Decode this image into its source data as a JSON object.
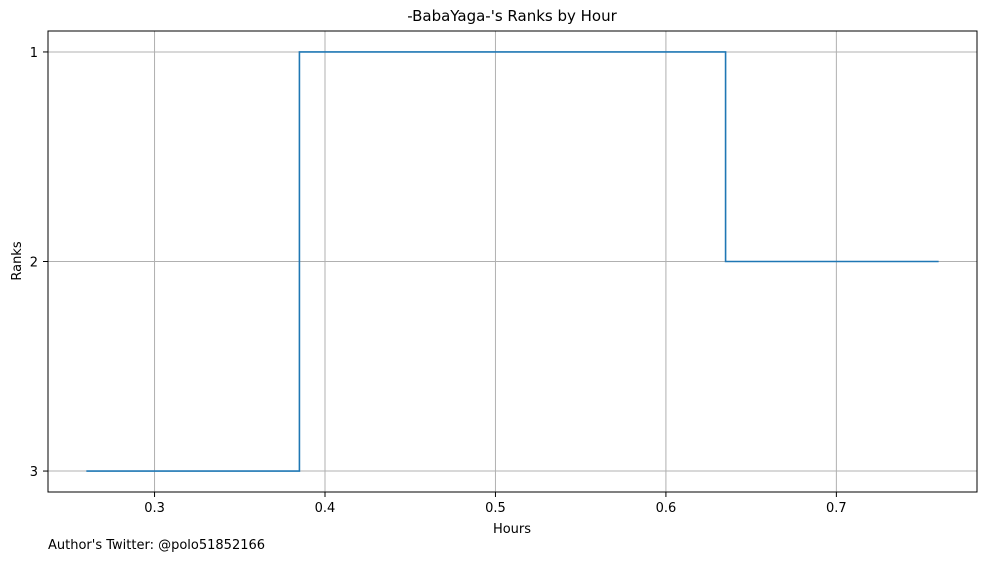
{
  "chart_data": {
    "type": "line",
    "drawstyle": "steps",
    "title": "-BabaYaga-'s Ranks by Hour",
    "xlabel": "Hours",
    "ylabel": "Ranks",
    "xlim": [
      0.2375,
      0.7825
    ],
    "ylim": [
      3.1,
      0.9
    ],
    "y_inverted": true,
    "grid": true,
    "xticks": [
      0.3,
      0.4,
      0.5,
      0.6,
      0.7
    ],
    "xtick_labels": [
      "0.3",
      "0.4",
      "0.5",
      "0.6",
      "0.7"
    ],
    "yticks": [
      1,
      2,
      3
    ],
    "ytick_labels": [
      "1",
      "2",
      "3"
    ],
    "series": [
      {
        "color": "#1f77b4",
        "x": [
          0.26,
          0.385,
          0.635,
          0.76
        ],
        "y": [
          3,
          1,
          2,
          2
        ]
      }
    ]
  },
  "footnote": "Author's Twitter: @polo51852166"
}
